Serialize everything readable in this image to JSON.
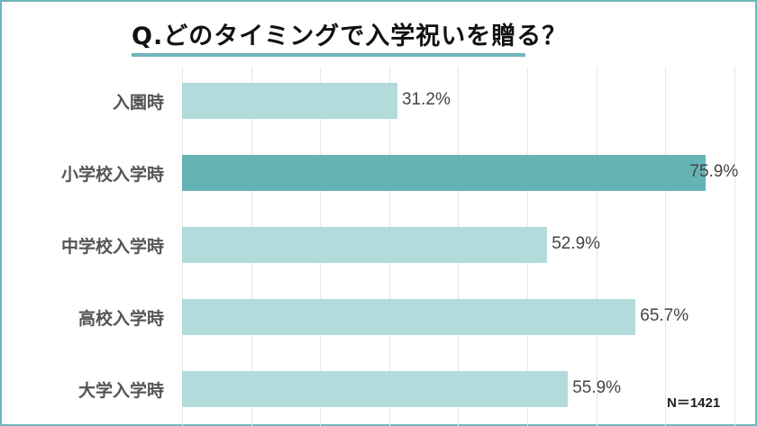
{
  "title": "Q.どのタイミングで入学祝いを贈る？",
  "note": "N＝1421",
  "colors": {
    "frame": "#6fb6ba",
    "bar": "#b3dbdb",
    "bar_highlight": "#66b3b6",
    "underline": "#6fb6ba"
  },
  "chart_data": {
    "type": "bar",
    "orientation": "horizontal",
    "title": "Q.どのタイミングで入学祝いを贈る？",
    "categories": [
      "入園時",
      "小学校入学時",
      "中学校入学時",
      "高校入学時",
      "大学入学時"
    ],
    "values": [
      31.2,
      75.9,
      52.9,
      65.7,
      55.9
    ],
    "labels": [
      "31.2%",
      "75.9%",
      "52.9%",
      "65.7%",
      "55.9%"
    ],
    "highlight_index": 1,
    "xlabel": "",
    "ylabel": "",
    "xlim": [
      0,
      80
    ],
    "grid": true,
    "grid_step": 10,
    "annotation": "N＝1421"
  }
}
